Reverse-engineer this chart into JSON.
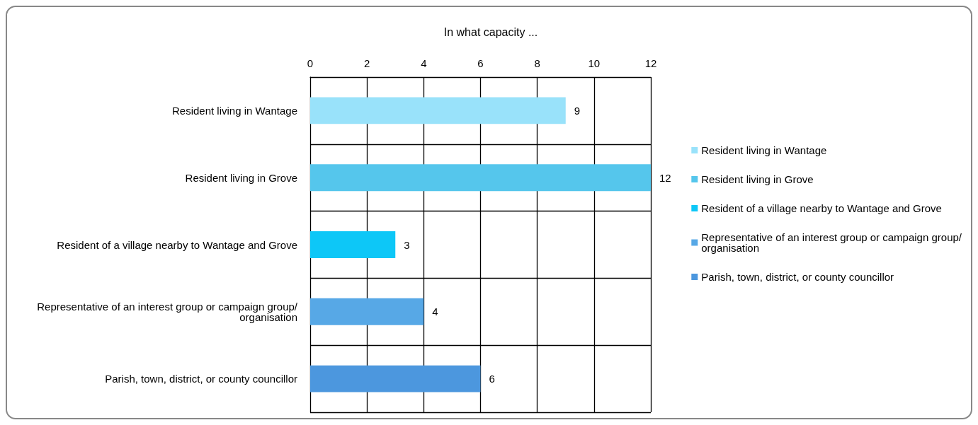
{
  "chart_data": {
    "type": "bar",
    "orientation": "horizontal",
    "title": "In what capacity ...",
    "stacked": true,
    "categories": [
      "Resident living in Wantage",
      "Resident living in Grove",
      "Resident of a village nearby to Wantage and Grove",
      "Representative of an interest group or campaign group/organisation",
      "Parish, town, district, or county councillor"
    ],
    "series": [
      {
        "name": "Resident living in Wantage",
        "color": "#99e2fa",
        "values": [
          9,
          null,
          null,
          null,
          null
        ]
      },
      {
        "name": "Resident living in Grove",
        "color": "#55c6ec",
        "values": [
          null,
          12,
          null,
          null,
          null
        ]
      },
      {
        "name": "Resident of a village nearby to Wantage and Grove",
        "color": "#0dc7f7",
        "values": [
          null,
          null,
          3,
          null,
          null
        ]
      },
      {
        "name": "Representative of an interest group or campaign group/organisation",
        "color": "#57a8e6",
        "values": [
          null,
          null,
          null,
          4,
          null
        ]
      },
      {
        "name": "Parish, town, district, or county councillor",
        "color": "#4c97de",
        "values": [
          null,
          null,
          null,
          null,
          6
        ]
      }
    ],
    "xlim": [
      0,
      12
    ],
    "xticks": [
      0,
      2,
      4,
      6,
      8,
      10,
      12
    ],
    "grid": true,
    "legend": "right",
    "data_labels": true
  }
}
